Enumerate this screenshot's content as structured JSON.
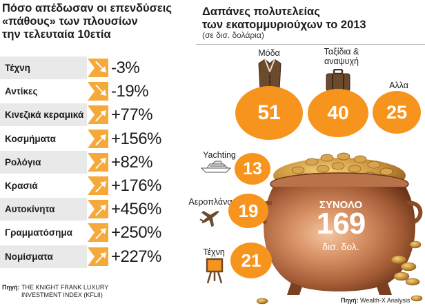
{
  "left": {
    "title_lines": [
      "Πόσο απέδωσαν οι επενδύσεις",
      "«πάθους» των πλουσίων",
      "την τελευταία 10ετία"
    ],
    "source_label": "Πηγή:",
    "source_text_lines": [
      "THE KNIGHT FRANK LUXURY",
      "INVESTMENT INDEX (KFLII)"
    ]
  },
  "right": {
    "title_lines": [
      "Δαπάνες πολυτελείας",
      "των εκατομμυριούχων το 2013"
    ],
    "subtitle": "(σε δισ. δολάρια)",
    "total_label": "ΣΥΝΟΛΟ",
    "total_value": "169",
    "total_unit": "δισ. δολ.",
    "source_label": "Πηγή:",
    "source_text": "Wealth-X Analysis"
  },
  "chart_data": [
    {
      "type": "table",
      "title": "Πόσο απέδωσαν οι επενδύσεις «πάθους» των πλουσίων την τελευταία 10ετία",
      "columns": [
        "category",
        "return"
      ],
      "rows": [
        {
          "category": "Τέχνη",
          "value": -3,
          "display": "-3%",
          "direction": "down"
        },
        {
          "category": "Αντίκες",
          "value": -19,
          "display": "-19%",
          "direction": "down"
        },
        {
          "category": "Κινεζικά κεραμικά",
          "value": 77,
          "display": "+77%",
          "direction": "up"
        },
        {
          "category": "Κοσμήματα",
          "value": 156,
          "display": "+156%",
          "direction": "up"
        },
        {
          "category": "Ρολόγια",
          "value": 82,
          "display": "+82%",
          "direction": "up"
        },
        {
          "category": "Κρασιά",
          "value": 176,
          "display": "+176%",
          "direction": "up"
        },
        {
          "category": "Αυτοκίνητα",
          "value": 456,
          "display": "+456%",
          "direction": "up"
        },
        {
          "category": "Γραμματόσημα",
          "value": 250,
          "display": "+250%",
          "direction": "up"
        },
        {
          "category": "Νομίσματα",
          "value": 227,
          "display": "+227%",
          "direction": "up"
        }
      ],
      "accent_color": "#f6a93b",
      "row_shading_color": "#e9e9e9"
    },
    {
      "type": "bubble",
      "title": "Δαπάνες πολυτελείας των εκατομμυριούχων το 2013",
      "unit": "(σε δισ. δολάρια)",
      "items": [
        {
          "category": "Μόδα",
          "value": 51,
          "icon": "jacket-icon"
        },
        {
          "category": "Ταξίδια & αναψυχή",
          "value": 40,
          "icon": "suitcase-icon"
        },
        {
          "category": "Αλλα",
          "value": 25,
          "icon": ""
        },
        {
          "category": "Yachting",
          "value": 13,
          "icon": "yacht-icon"
        },
        {
          "category": "Αεροπλάνα",
          "value": 19,
          "icon": "airplane-icon"
        },
        {
          "category": "Τέχνη",
          "value": 21,
          "icon": "easel-icon"
        }
      ],
      "total": 169,
      "circle_color": "#f7941d"
    }
  ]
}
